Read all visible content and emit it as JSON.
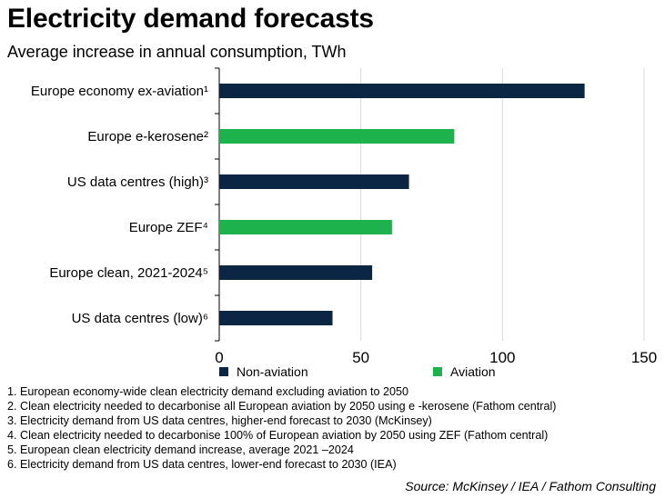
{
  "chart_data": {
    "type": "bar",
    "orientation": "horizontal",
    "title": "Electricity demand forecasts",
    "subtitle": "Average increase in annual consumption, TWh",
    "categories": [
      "Europe economy ex-aviation¹",
      "Europe e-kerosene²",
      "US data centres (high)³",
      "Europe ZEF⁴",
      "Europe clean, 2021-2024⁵",
      "US data centres (low)⁶"
    ],
    "values": [
      129,
      83,
      67,
      61,
      54,
      40
    ],
    "groups": [
      "Non-aviation",
      "Aviation",
      "Non-aviation",
      "Aviation",
      "Non-aviation",
      "Non-aviation"
    ],
    "xlim": [
      0,
      150
    ],
    "xticks": [
      0,
      50,
      100,
      150
    ],
    "grid": "vertical",
    "legend": [
      {
        "name": "Non-aviation",
        "color": "#0b2545"
      },
      {
        "name": "Aviation",
        "color": "#1db24b"
      }
    ],
    "legend_position": "bottom"
  },
  "footnotes": [
    "1. European economy-wide clean electricity demand excluding aviation to 2050",
    "2. Clean electricity needed to decarbonise all European aviation by 2050 using e -kerosene (Fathom central)",
    "3. Electricity demand from US data centres, higher-end forecast to 2030 (McKinsey)",
    "4.  Clean electricity needed to decarbonise 100% of European aviation by 2050 using ZEF (Fathom central)",
    "5. European clean electricity demand increase, average 2021 –2024",
    "6. Electricity demand from US data centres, lower-end forecast to 2030 (IEA)"
  ],
  "source": "Source: McKinsey / IEA / Fathom Consulting"
}
